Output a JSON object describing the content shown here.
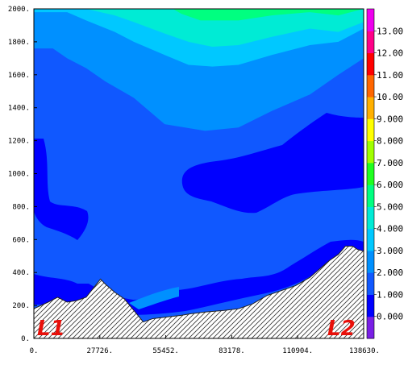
{
  "chart_data": {
    "type": "heatmap",
    "title": "",
    "xlabel": "",
    "ylabel": "",
    "xlim": [
      0,
      138630
    ],
    "ylim": [
      0,
      2000
    ],
    "x_tick_labels": [
      "0.",
      "27726.",
      "55452.",
      "83178.",
      "110904.",
      "138630."
    ],
    "y_tick_labels": [
      "0.",
      "200.",
      "400.",
      "600.",
      "800.",
      "1000.",
      "1200.",
      "1400.",
      "1600.",
      "1800.",
      "2000."
    ],
    "endpoints": {
      "start": "L1",
      "end": "L2"
    },
    "colorbar": {
      "levels": [
        -1,
        0,
        1,
        2,
        3,
        4,
        5,
        6,
        7,
        8,
        9,
        10,
        11,
        12,
        13,
        14
      ],
      "labels": [
        "0.000",
        "1.000",
        "2.000",
        "3.000",
        "4.000",
        "5.000",
        "6.000",
        "7.000",
        "8.000",
        "9.000",
        "10.00",
        "11.00",
        "12.00",
        "13.00"
      ],
      "colors": [
        "#7a1fe6",
        "#0000ff",
        "#1058ff",
        "#0090ff",
        "#00c8ff",
        "#00ebd5",
        "#00ff80",
        "#20ff20",
        "#a0ff00",
        "#ffff00",
        "#ffb000",
        "#ff6600",
        "#ff0000",
        "#ff0088",
        "#ee00ee"
      ]
    },
    "terrain": {
      "x": [
        0,
        6000,
        10000,
        14000,
        18000,
        22000,
        28000,
        30000,
        34000,
        38000,
        42000,
        46000,
        50000,
        56000,
        62000,
        66000,
        72000,
        80000,
        86000,
        92000,
        98000,
        104000,
        110000,
        116000,
        120000,
        124000,
        128000,
        131000,
        134000,
        136000,
        138630
      ],
      "y": [
        180,
        220,
        250,
        220,
        230,
        250,
        360,
        330,
        280,
        240,
        170,
        100,
        120,
        130,
        140,
        150,
        160,
        170,
        180,
        210,
        260,
        290,
        320,
        370,
        420,
        470,
        510,
        560,
        560,
        540,
        530
      ]
    },
    "bands": [
      {
        "level": 2,
        "x": [
          0,
          8000,
          14000,
          22000,
          30000,
          42000,
          55000,
          72000,
          86000,
          100000,
          116000,
          128000,
          138630
        ],
        "y": [
          1760,
          1760,
          1700,
          1640,
          1560,
          1460,
          1300,
          1260,
          1280,
          1380,
          1480,
          1600,
          1700
        ]
      },
      {
        "level": 3,
        "x": [
          0,
          14000,
          22000,
          34000,
          42000,
          55000,
          65000,
          75000,
          86000,
          100000,
          116000,
          128000,
          138630
        ],
        "y": [
          1980,
          1980,
          1930,
          1860,
          1800,
          1720,
          1660,
          1650,
          1660,
          1720,
          1780,
          1800,
          1880
        ]
      },
      {
        "level": 4,
        "x": [
          0,
          14000,
          22000,
          34000,
          42000,
          55000,
          65000,
          75000,
          86000,
          100000,
          116000,
          128000,
          138630
        ],
        "y": [
          2030,
          2030,
          2000,
          1960,
          1920,
          1850,
          1800,
          1770,
          1780,
          1830,
          1880,
          1860,
          1920
        ]
      },
      {
        "level": 5,
        "x": [
          0,
          14000,
          22000,
          34000,
          42000,
          55000,
          62000,
          70000,
          86000,
          100000,
          116000,
          128000,
          138630
        ],
        "y": [
          2100,
          2100,
          2100,
          2100,
          2100,
          2030,
          1970,
          1930,
          1930,
          1960,
          1980,
          1960,
          2000
        ]
      }
    ]
  }
}
